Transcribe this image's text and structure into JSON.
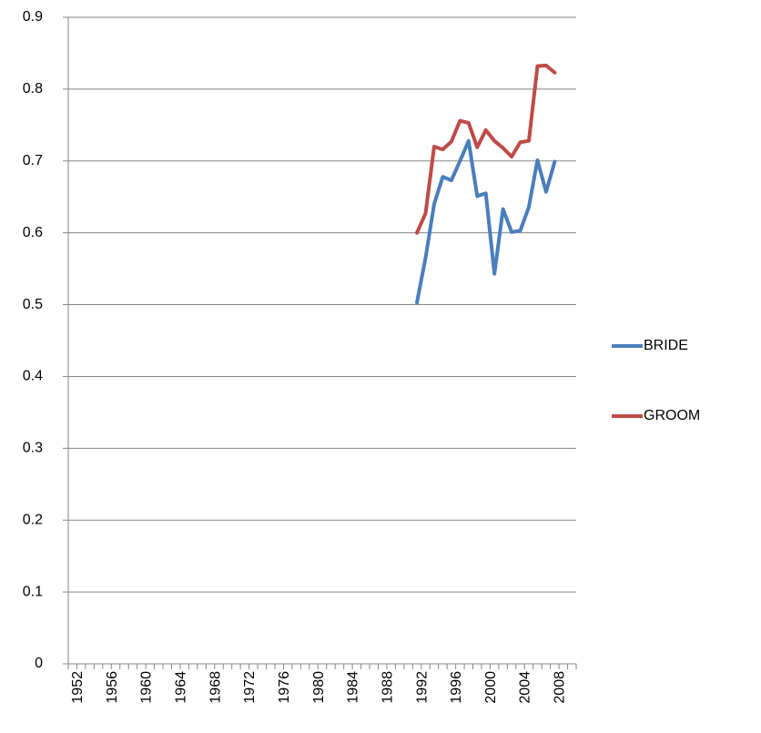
{
  "chart_data": {
    "type": "line",
    "categories": [
      "1952",
      null,
      null,
      null,
      "1956",
      null,
      null,
      null,
      "1960",
      null,
      null,
      null,
      "1964",
      null,
      null,
      null,
      "1968",
      null,
      null,
      null,
      "1972",
      null,
      null,
      null,
      "1976",
      null,
      null,
      null,
      "1980",
      null,
      null,
      null,
      "1984",
      null,
      null,
      null,
      "1988",
      null,
      null,
      null,
      "1992",
      null,
      null,
      null,
      "1996",
      null,
      null,
      null,
      "2000",
      null,
      null,
      null,
      "2004",
      null,
      null,
      null,
      "2008",
      null,
      null
    ],
    "series": [
      {
        "name": "BRIDE",
        "color": "#4a7ebb",
        "values": [
          null,
          null,
          null,
          null,
          null,
          null,
          null,
          null,
          null,
          null,
          null,
          null,
          null,
          null,
          null,
          null,
          null,
          null,
          null,
          null,
          null,
          null,
          null,
          null,
          null,
          null,
          null,
          null,
          null,
          null,
          null,
          null,
          null,
          null,
          null,
          null,
          null,
          null,
          null,
          null,
          0.503,
          0.565,
          0.64,
          0.678,
          0.673,
          0.7,
          0.728,
          0.651,
          0.655,
          0.543,
          0.633,
          0.601,
          0.603,
          0.636,
          0.701,
          0.657,
          0.699,
          null,
          null
        ]
      },
      {
        "name": "GROOM",
        "color": "#be4b48",
        "values": [
          null,
          null,
          null,
          null,
          null,
          null,
          null,
          null,
          null,
          null,
          null,
          null,
          null,
          null,
          null,
          null,
          null,
          null,
          null,
          null,
          null,
          null,
          null,
          null,
          null,
          null,
          null,
          null,
          null,
          null,
          null,
          null,
          null,
          null,
          null,
          null,
          null,
          null,
          null,
          null,
          0.6,
          0.627,
          0.72,
          0.716,
          0.727,
          0.756,
          0.753,
          0.719,
          0.743,
          0.728,
          0.718,
          0.706,
          0.726,
          0.728,
          0.832,
          0.833,
          0.823,
          null,
          null
        ]
      }
    ],
    "ylim": [
      0,
      0.9
    ],
    "yticks": [
      0,
      0.1,
      0.2,
      0.3,
      0.4,
      0.5,
      0.6,
      0.7,
      0.8,
      0.9
    ],
    "grid": true,
    "legend": "right"
  }
}
